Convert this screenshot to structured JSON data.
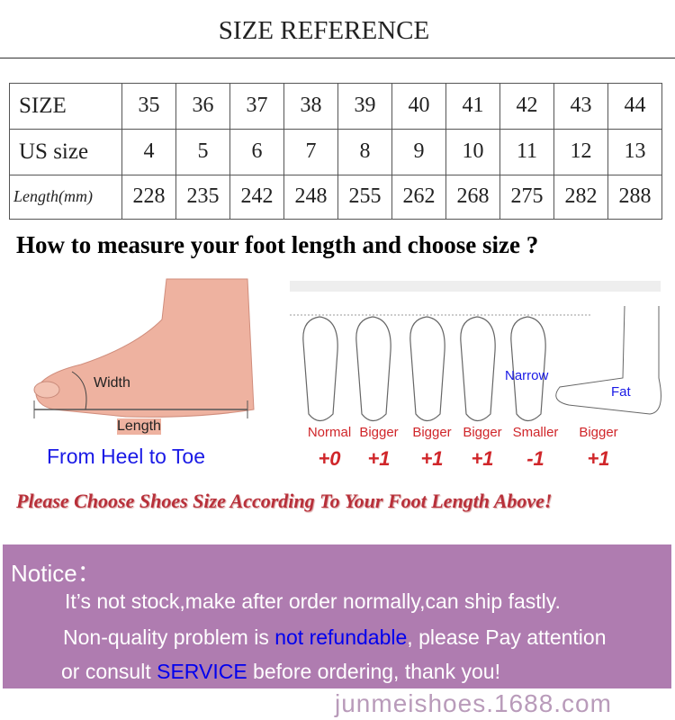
{
  "title": "SIZE REFERENCE",
  "table": {
    "rows": [
      {
        "label": "SIZE",
        "values": [
          "35",
          "36",
          "37",
          "38",
          "39",
          "40",
          "41",
          "42",
          "43",
          "44"
        ]
      },
      {
        "label": "US size",
        "values": [
          "4",
          "5",
          "6",
          "7",
          "8",
          "9",
          "10",
          "11",
          "12",
          "13"
        ]
      },
      {
        "label": "Length(mm)",
        "values": [
          "228",
          "235",
          "242",
          "248",
          "255",
          "262",
          "268",
          "275",
          "282",
          "288"
        ]
      }
    ]
  },
  "howto": "How to measure your foot length and choose size ?",
  "foot_diagram": {
    "width_label": "Width",
    "length_label": "Length",
    "caption": "From Heel to Toe"
  },
  "foot_types": [
    {
      "label": "Normal",
      "adjust": "+0"
    },
    {
      "label": "Bigger",
      "adjust": "+1"
    },
    {
      "label": "Bigger",
      "adjust": "+1"
    },
    {
      "label": "Bigger",
      "adjust": "+1"
    },
    {
      "label": "Smaller",
      "adjust": "-1"
    },
    {
      "label": "Bigger",
      "adjust": "+1"
    }
  ],
  "narrow_label": "Narrow",
  "fat_label": "Fat",
  "choose_text": "Please Choose Shoes Size According To Your Foot Length Above!",
  "notice": {
    "heading": "Notice：",
    "line1": "It’s not stock,make after order normally,can ship fastly.",
    "line2_a": "Non-quality problem is ",
    "line2_b": "not refundable",
    "line2_c": ", please Pay attention",
    "line3_a": "or consult ",
    "line3_b": "SERVICE",
    "line3_c": " before ordering, thank you!",
    "watermark": "junmeishoes.1688.com",
    "bg_color": "#af7cb0",
    "highlight_color": "#0000ee"
  }
}
